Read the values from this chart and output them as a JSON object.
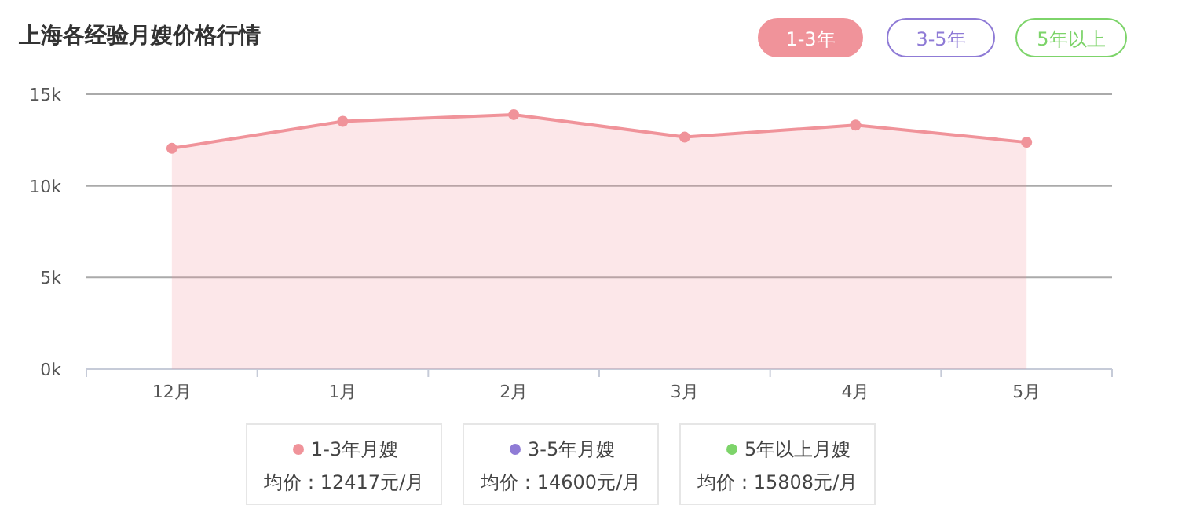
{
  "chart_data": {
    "type": "area",
    "title": "上海各经验月嫂价格行情",
    "categories": [
      "12月",
      "1月",
      "2月",
      "3月",
      "4月",
      "5月"
    ],
    "series": [
      {
        "name": "1-3年月嫂",
        "color": "#f0939a",
        "values": [
          12050,
          13520,
          13890,
          12660,
          13320,
          12380
        ]
      },
      {
        "name": "3-5年月嫂",
        "color": "#8f7bd6",
        "values": [
          null,
          null,
          null,
          null,
          null,
          null
        ]
      },
      {
        "name": "5年以上月嫂",
        "color": "#7dd46a",
        "values": [
          null,
          null,
          null,
          null,
          null,
          null
        ]
      }
    ],
    "ylim": [
      0,
      15000
    ],
    "yticks": [
      {
        "value": 0,
        "label": "0k"
      },
      {
        "value": 5000,
        "label": "5k"
      },
      {
        "value": 10000,
        "label": "10k"
      },
      {
        "value": 15000,
        "label": "15k"
      }
    ],
    "grid": "y",
    "marker": "circle",
    "legend": "bottom",
    "annotations": [
      "1-3年",
      "3-5年",
      "5年以上",
      "均价：12417元/月",
      "均价：14600元/月",
      "均价：15808元/月"
    ]
  }
}
